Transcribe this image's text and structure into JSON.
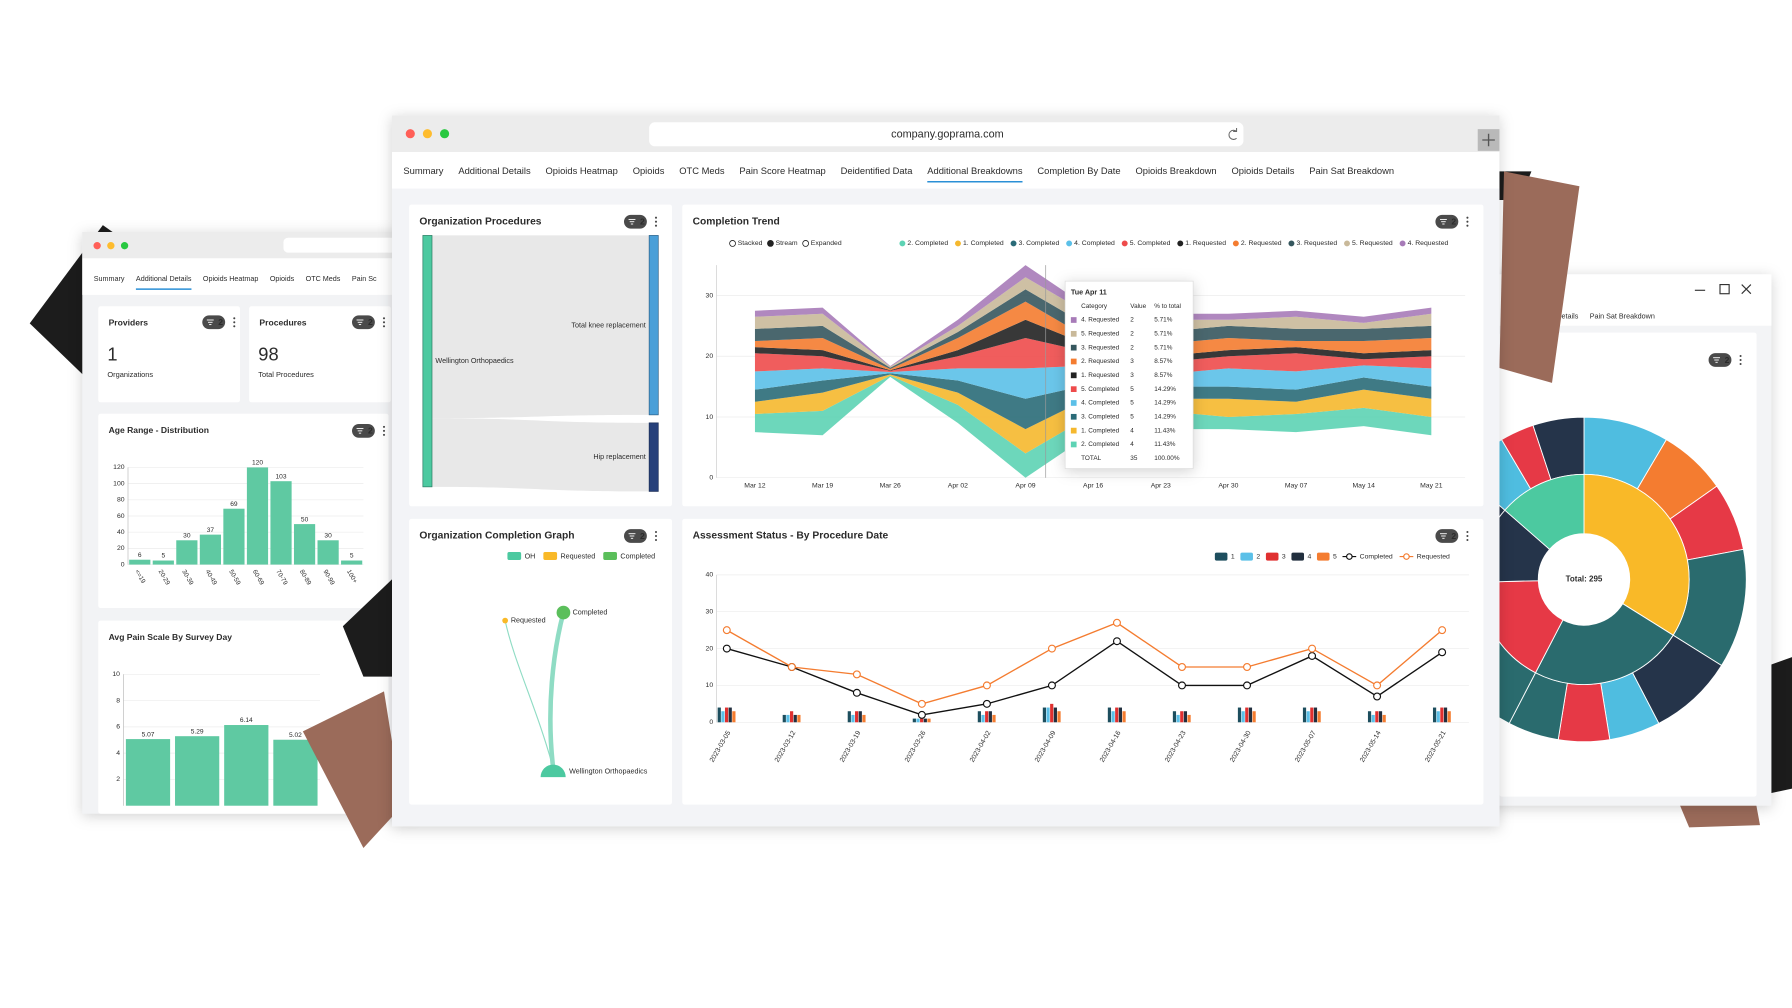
{
  "ui": {
    "main_window": {
      "url": "company.goprama.com",
      "tabs": [
        "Summary",
        "Additional Details",
        "Opioids Heatmap",
        "Opioids",
        "OTC Meds",
        "Pain Score Heatmap",
        "Deidentified Data",
        "Additional Breakdowns",
        "Completion By Date",
        "Opioids Breakdown",
        "Opioids Details",
        "Pain Sat Breakdown"
      ],
      "active_tab": "Additional Breakdowns",
      "sankey": {
        "title": "Organization Procedures",
        "badge": "2",
        "source": "Wellington Orthopaedics",
        "targets": [
          "Total knee replacement",
          "Hip replacement"
        ]
      },
      "network": {
        "title": "Organization Completion Graph",
        "badge": "2",
        "legend": [
          {
            "name": "OH",
            "color": "#4cc9a0"
          },
          {
            "name": "Requested",
            "color": "#f9b928"
          },
          {
            "name": "Completed",
            "color": "#5bbf5b"
          }
        ],
        "nodes": [
          "Requested",
          "Completed",
          "Wellington Orthopaedics"
        ]
      }
    },
    "left_window": {
      "tabs": [
        "Summary",
        "Additional Details",
        "Opioids Heatmap",
        "Opioids",
        "OTC Meds",
        "Pain Sc"
      ],
      "active_tab": "Additional Details",
      "cards": [
        {
          "title": "Providers",
          "badge": "2",
          "value": 1,
          "label": "Organizations"
        },
        {
          "title": "Procedures",
          "badge": "2",
          "value": 98,
          "label": "Total Procedures"
        }
      ]
    },
    "right_window": {
      "tabs": [
        "ids Details",
        "Pain Sat Breakdown"
      ]
    }
  },
  "chart_data": [
    {
      "type": "stream",
      "title": "Completion Trend",
      "badge": "2",
      "modes": [
        "Stacked",
        "Stream",
        "Expanded"
      ],
      "mode": "Stream",
      "categories": [
        "Mar 12",
        "Mar 19",
        "Mar 26",
        "Apr 02",
        "Apr 09",
        "Apr 16",
        "Apr 23",
        "Apr 30",
        "May 07",
        "May 14",
        "May 21"
      ],
      "ylim": [
        0,
        35
      ],
      "yticks": [
        0,
        10,
        20,
        30
      ],
      "series": [
        {
          "name": "2. Completed",
          "color": "#5dd3b4",
          "values": [
            3,
            4,
            0.2,
            3,
            4,
            3,
            3,
            2,
            3,
            3,
            3
          ]
        },
        {
          "name": "1. Completed",
          "color": "#f5b82e",
          "values": [
            2,
            3,
            0.2,
            2,
            4,
            3,
            2,
            3,
            2,
            3,
            3
          ]
        },
        {
          "name": "3. Completed",
          "color": "#2a6b78",
          "values": [
            2,
            2,
            0.2,
            2,
            5,
            2,
            2,
            2,
            2,
            2,
            2
          ]
        },
        {
          "name": "4. Completed",
          "color": "#5bc0e8",
          "values": [
            3,
            2,
            0.2,
            2,
            5,
            3,
            2,
            3,
            3,
            2,
            3
          ]
        },
        {
          "name": "5. Completed",
          "color": "#ee4b4b",
          "values": [
            3,
            2,
            0.2,
            2,
            5,
            2,
            2,
            2,
            3,
            1,
            2
          ]
        },
        {
          "name": "1. Requested",
          "color": "#222222",
          "values": [
            1,
            1,
            0.1,
            1,
            3,
            1,
            1,
            1,
            1,
            1,
            1
          ]
        },
        {
          "name": "2. Requested",
          "color": "#f47c30",
          "values": [
            1,
            2,
            0.2,
            2,
            3,
            1,
            2,
            2,
            1,
            2,
            2
          ]
        },
        {
          "name": "3. Requested",
          "color": "#36575e",
          "values": [
            2,
            2,
            0.2,
            1,
            2,
            2,
            2,
            2,
            2,
            2,
            2
          ]
        },
        {
          "name": "5. Requested",
          "color": "#c9b99a",
          "values": [
            2,
            2,
            0.2,
            1,
            2,
            2,
            2,
            1,
            2,
            1,
            2
          ]
        },
        {
          "name": "4. Requested",
          "color": "#a77bb8",
          "values": [
            1,
            1,
            0.1,
            1,
            2,
            1,
            1,
            1,
            1,
            1,
            1
          ]
        }
      ],
      "tooltip": {
        "title": "Tue Apr 11",
        "columns": [
          "Category",
          "Value",
          "% to total"
        ],
        "rows": [
          [
            "4. Requested",
            2,
            "5.71%"
          ],
          [
            "5. Requested",
            2,
            "5.71%"
          ],
          [
            "3. Requested",
            2,
            "5.71%"
          ],
          [
            "2. Requested",
            3,
            "8.57%"
          ],
          [
            "1. Requested",
            3,
            "8.57%"
          ],
          [
            "5. Completed",
            5,
            "14.29%"
          ],
          [
            "4. Completed",
            5,
            "14.29%"
          ],
          [
            "3. Completed",
            5,
            "14.29%"
          ],
          [
            "1. Completed",
            4,
            "11.43%"
          ],
          [
            "2. Completed",
            4,
            "11.43%"
          ]
        ],
        "total": [
          "TOTAL",
          35,
          "100.00%"
        ]
      }
    },
    {
      "type": "bar_line",
      "title": "Assessment Status - By Procedure Date",
      "badge": "2",
      "categories": [
        "2023-03-05",
        "2023-03-12",
        "2023-03-19",
        "2023-03-26",
        "2023-04-02",
        "2023-04-09",
        "2023-04-16",
        "2023-04-23",
        "2023-04-30",
        "2023-05-07",
        "2023-05-14",
        "2023-05-21"
      ],
      "ylim": [
        0,
        40
      ],
      "yticks": [
        0,
        10,
        20,
        30,
        40
      ],
      "bar_series": [
        {
          "name": "1",
          "color": "#1d4e5e",
          "values": [
            4,
            2,
            3,
            1,
            3,
            4,
            4,
            3,
            4,
            4,
            3,
            4
          ]
        },
        {
          "name": "2",
          "color": "#5bc0e8",
          "values": [
            3,
            2,
            2,
            1,
            2,
            4,
            3,
            2,
            3,
            3,
            2,
            3
          ]
        },
        {
          "name": "3",
          "color": "#e03030",
          "values": [
            4,
            3,
            3,
            1,
            3,
            5,
            4,
            3,
            4,
            4,
            3,
            4
          ]
        },
        {
          "name": "4",
          "color": "#222f3e",
          "values": [
            4,
            2,
            3,
            1,
            3,
            4,
            4,
            3,
            4,
            4,
            3,
            4
          ]
        },
        {
          "name": "5",
          "color": "#f47c30",
          "values": [
            3,
            2,
            2,
            1,
            2,
            3,
            3,
            2,
            3,
            3,
            2,
            3
          ]
        }
      ],
      "line_series": [
        {
          "name": "Completed",
          "color": "#111111",
          "values": [
            20,
            15,
            8,
            2,
            5,
            10,
            22,
            10,
            10,
            18,
            7,
            19
          ]
        },
        {
          "name": "Requested",
          "color": "#f47c30",
          "values": [
            25,
            15,
            13,
            5,
            10,
            20,
            27,
            15,
            15,
            20,
            10,
            25
          ]
        }
      ]
    },
    {
      "type": "bar",
      "title": "Age Range - Distribution",
      "badge": "2",
      "categories": [
        "<=19",
        "20-29",
        "30-39",
        "40-49",
        "50-59",
        "60-69",
        "70-79",
        "80-89",
        "90-99",
        "100+"
      ],
      "values": [
        6,
        5,
        30,
        37,
        69,
        120,
        103,
        50,
        30,
        5
      ],
      "color": "#5fc9a2",
      "ylim": [
        0,
        120
      ],
      "yticks": [
        0,
        20,
        40,
        60,
        80,
        100,
        120
      ]
    },
    {
      "type": "bar",
      "title": "Avg Pain Scale By Survey Day",
      "badge": "2",
      "values": [
        5.07,
        5.29,
        6.14,
        5.02
      ],
      "color": "#5fc9a2",
      "ylim": [
        0,
        10
      ],
      "yticks": [
        2,
        4,
        6,
        8,
        10
      ]
    },
    {
      "type": "sunburst",
      "badge": "2",
      "center_label": "Total: 295",
      "inner": {
        "values": [
          100,
          70,
          50,
          35,
          40
        ],
        "colors": [
          "#f9b928",
          "#2a6b6e",
          "#e63946",
          "#25344a",
          "#4cc9a0"
        ]
      },
      "outer": {
        "values": [
          25,
          20,
          20,
          35,
          25,
          15,
          15,
          15,
          25,
          15,
          10,
          10,
          15,
          10,
          15,
          10,
          15,
          0
        ],
        "colors": [
          "#4fbde0",
          "#f47c30",
          "#e63946",
          "#2a6b6e",
          "#25344a",
          "#4fbde0",
          "#e63946",
          "#2a6b6e",
          "#2a6b6e",
          "#f47c30",
          "#e63946",
          "#4fbde0",
          "#2a6b6e",
          "#25344a",
          "#4fbde0",
          "#e63946",
          "#25344a",
          "#25344a"
        ]
      }
    }
  ]
}
